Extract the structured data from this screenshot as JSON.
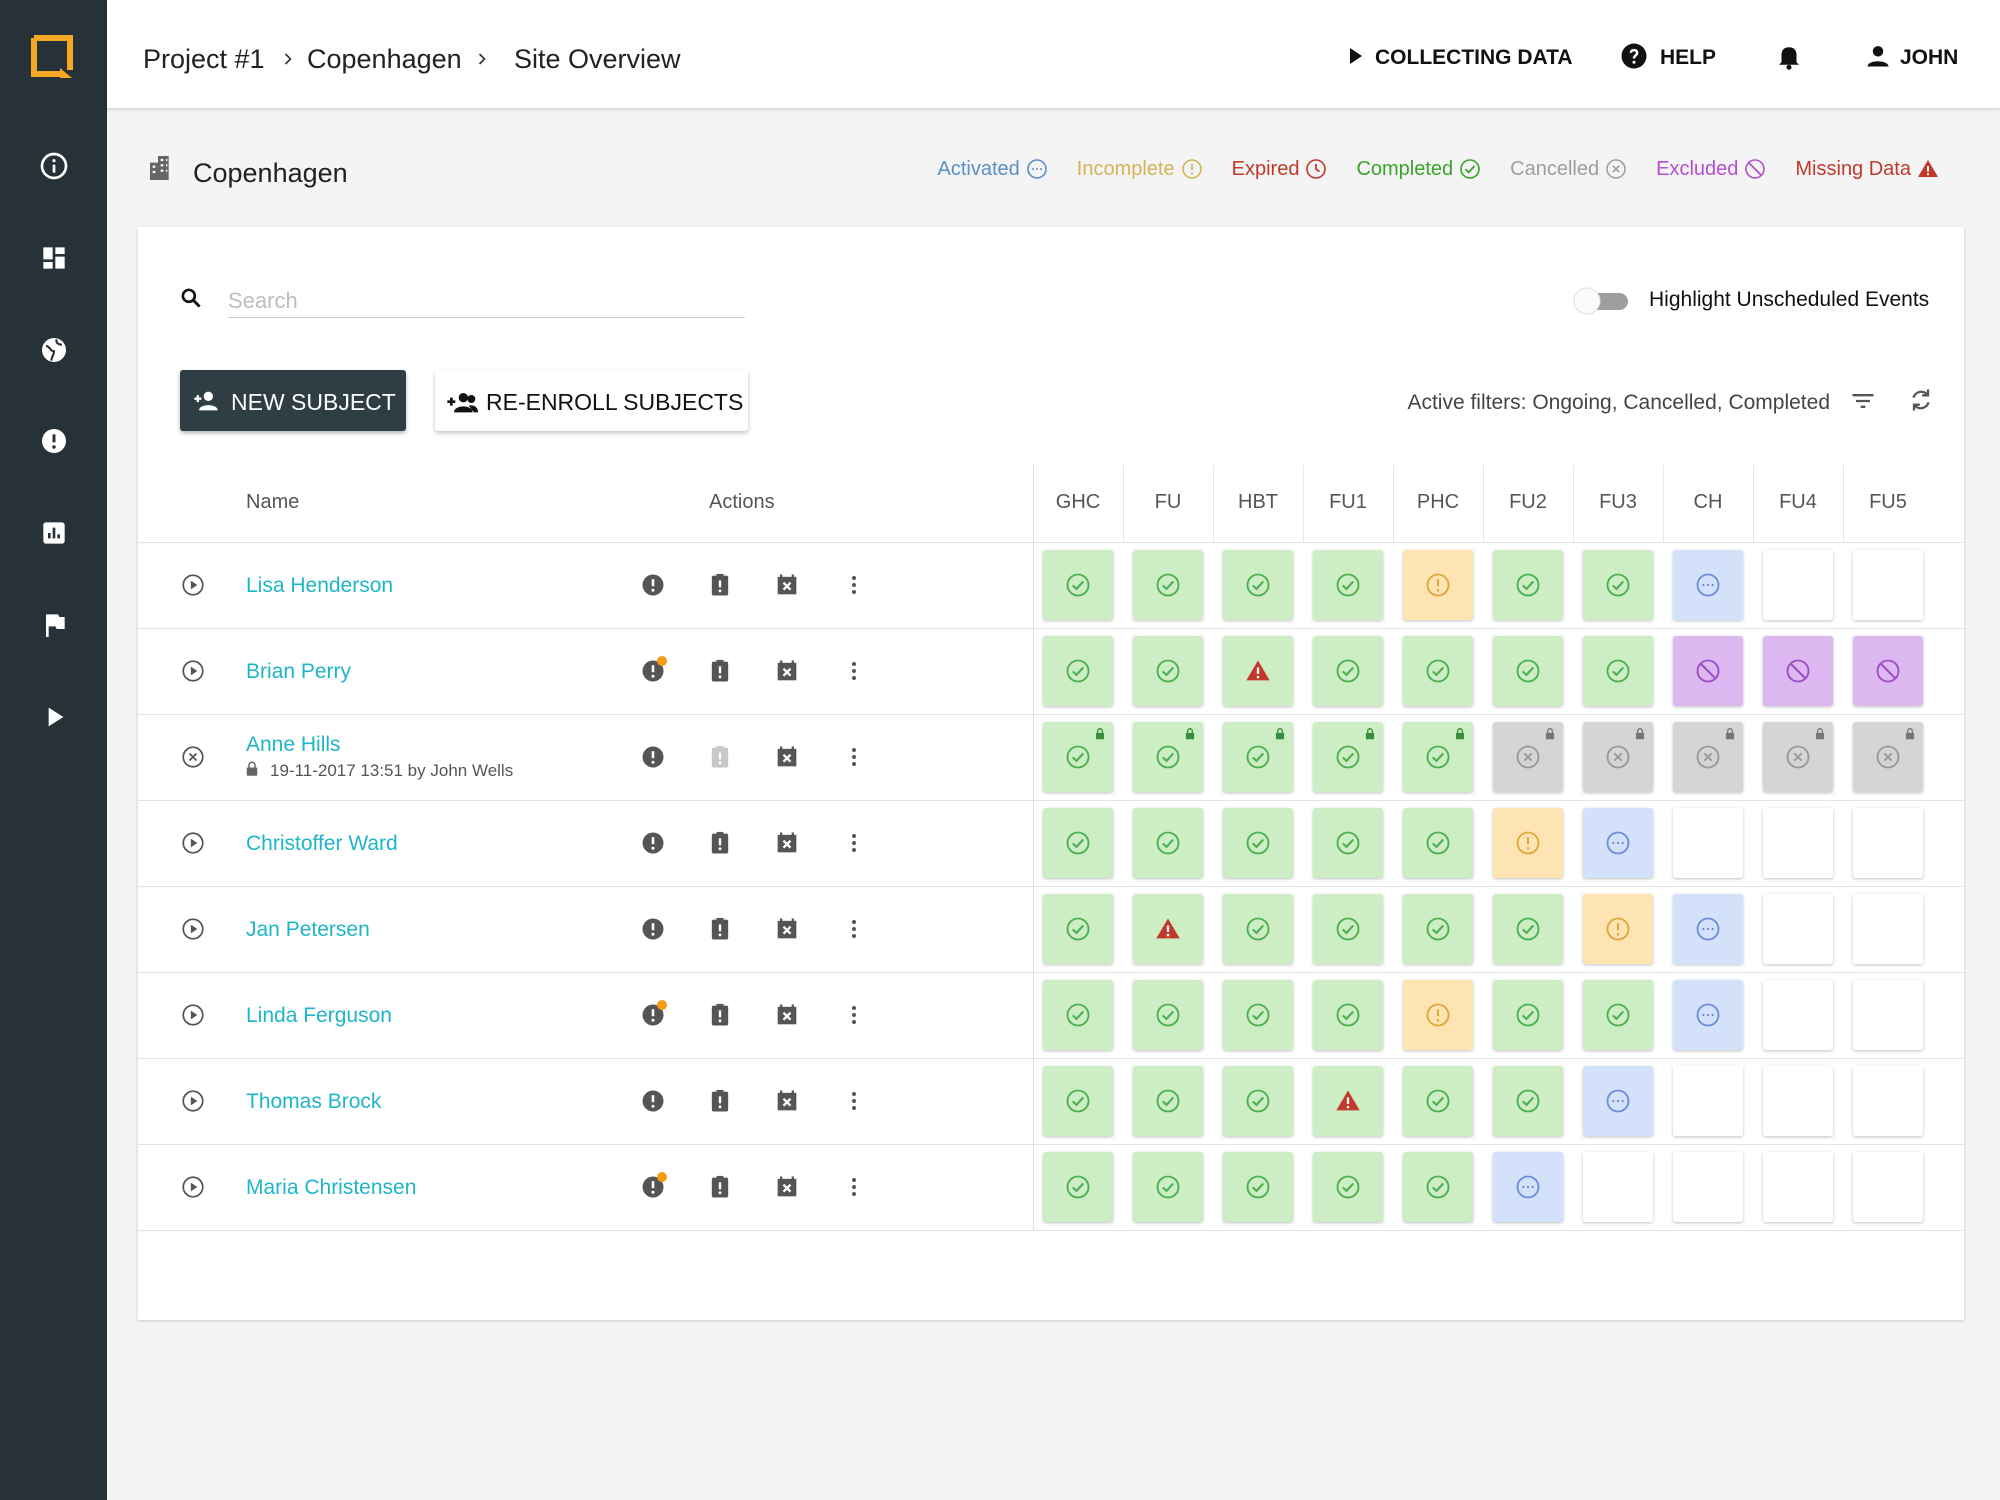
{
  "header": {
    "breadcrumbs": [
      "Project #1",
      "Copenhagen",
      "Site Overview"
    ],
    "status": "COLLECTING DATA",
    "help": "HELP",
    "user": "JOHN"
  },
  "site": {
    "title": "Copenhagen",
    "legend": [
      "Activated",
      "Incomplete",
      "Expired",
      "Completed",
      "Cancelled",
      "Excluded",
      "Missing Data"
    ]
  },
  "toolbar": {
    "search_placeholder": "Search",
    "toggle_label": "Highlight Unscheduled Events",
    "new_subject": "NEW SUBJECT",
    "reenroll": "RE-ENROLL SUBJECTS",
    "active_filters": "Active filters: Ongoing, Cancelled, Completed"
  },
  "table": {
    "name_header": "Name",
    "actions_header": "Actions",
    "events": [
      "GHC",
      "FU",
      "HBT",
      "FU1",
      "PHC",
      "FU2",
      "FU3",
      "CH",
      "FU4",
      "FU5"
    ],
    "rows": [
      {
        "name": "Lisa Henderson",
        "cells": [
          3,
          3,
          3,
          3,
          1,
          3,
          3,
          0,
          null,
          null
        ]
      },
      {
        "name": "Brian Perry",
        "alert": true,
        "cells": [
          3,
          3,
          6,
          3,
          3,
          3,
          3,
          5,
          5,
          5
        ]
      },
      {
        "name": "Anne Hills",
        "note": "19-11-2017 13:51 by John Wells",
        "locked": true,
        "cells": [
          3,
          3,
          3,
          3,
          3,
          4,
          4,
          4,
          4,
          4
        ]
      },
      {
        "name": "Christoffer Ward",
        "cells": [
          3,
          3,
          3,
          3,
          3,
          1,
          0,
          null,
          null,
          null
        ]
      },
      {
        "name": "Jan Petersen",
        "cells": [
          3,
          6,
          3,
          3,
          3,
          3,
          1,
          0,
          null,
          null
        ]
      },
      {
        "name": "Linda Ferguson",
        "alert": true,
        "cells": [
          3,
          3,
          3,
          3,
          1,
          3,
          3,
          0,
          null,
          null
        ]
      },
      {
        "name": "Thomas Brock",
        "cells": [
          3,
          3,
          3,
          6,
          3,
          3,
          0,
          null,
          null,
          null
        ]
      },
      {
        "name": "Maria Christensen",
        "alert": true,
        "cells": [
          3,
          3,
          3,
          3,
          3,
          0,
          null,
          null,
          null,
          null
        ]
      }
    ]
  }
}
